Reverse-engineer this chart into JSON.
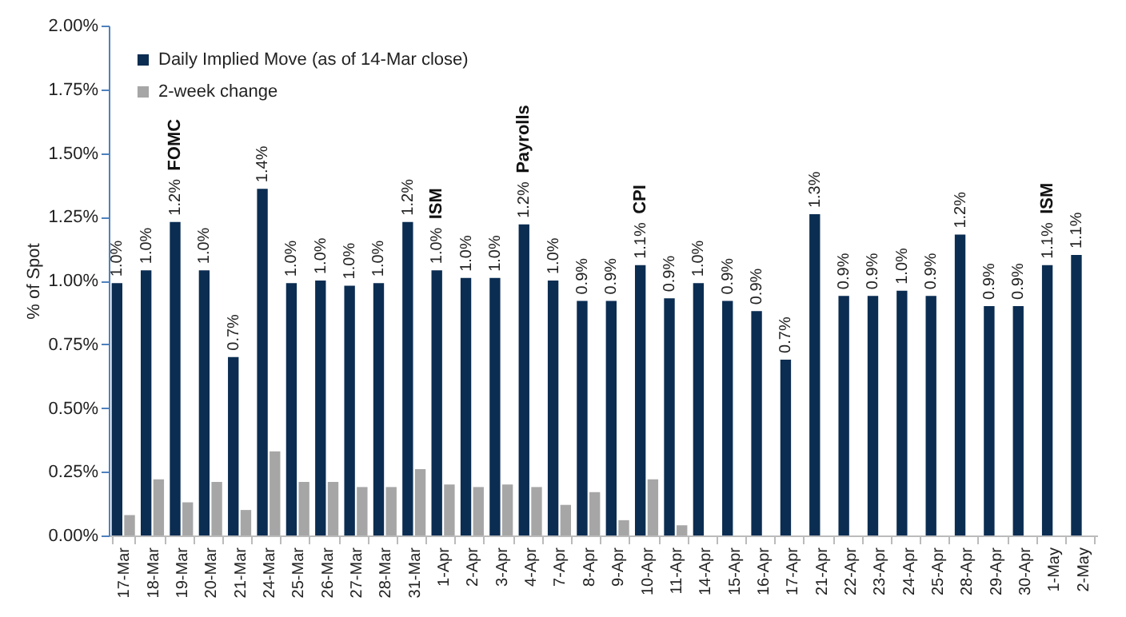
{
  "chart_data": {
    "type": "bar",
    "ylabel": "% of Spot",
    "legend": "top left",
    "categories": [
      "17-Mar",
      "18-Mar",
      "19-Mar",
      "20-Mar",
      "21-Mar",
      "24-Mar",
      "25-Mar",
      "26-Mar",
      "27-Mar",
      "28-Mar",
      "31-Mar",
      "1-Apr",
      "2-Apr",
      "3-Apr",
      "4-Apr",
      "7-Apr",
      "8-Apr",
      "9-Apr",
      "10-Apr",
      "11-Apr",
      "14-Apr",
      "15-Apr",
      "16-Apr",
      "17-Apr",
      "21-Apr",
      "22-Apr",
      "23-Apr",
      "24-Apr",
      "25-Apr",
      "28-Apr",
      "29-Apr",
      "30-Apr",
      "1-May",
      "2-May"
    ],
    "series": [
      {
        "name": "Daily Implied Move (as of 14-Mar close)",
        "color": "#0b2d52",
        "values": [
          0.99,
          1.04,
          1.23,
          1.04,
          0.7,
          1.36,
          0.99,
          1.0,
          0.98,
          0.99,
          1.23,
          1.04,
          1.01,
          1.01,
          1.22,
          1.0,
          0.92,
          0.92,
          1.06,
          0.93,
          0.99,
          0.92,
          0.88,
          0.69,
          1.26,
          0.94,
          0.94,
          0.96,
          0.94,
          1.18,
          0.9,
          0.9,
          1.06,
          1.1
        ],
        "value_labels": [
          "1.0%",
          "1.0%",
          "1.2%",
          "1.0%",
          "0.7%",
          "1.4%",
          "1.0%",
          "1.0%",
          "1.0%",
          "1.0%",
          "1.2%",
          "1.0%",
          "1.0%",
          "1.0%",
          "1.2%",
          "1.0%",
          "0.9%",
          "0.9%",
          "1.1%",
          "0.9%",
          "1.0%",
          "0.9%",
          "0.9%",
          "0.7%",
          "1.3%",
          "0.9%",
          "0.9%",
          "1.0%",
          "0.9%",
          "1.2%",
          "0.9%",
          "0.9%",
          "1.1%",
          "1.1%"
        ]
      },
      {
        "name": "2-week change",
        "color": "#a6a6a6",
        "values": [
          0.08,
          0.22,
          0.13,
          0.21,
          0.1,
          0.33,
          0.21,
          0.21,
          0.19,
          0.19,
          0.26,
          0.2,
          0.19,
          0.2,
          0.19,
          0.12,
          0.17,
          0.06,
          0.22,
          0.04,
          null,
          null,
          null,
          null,
          null,
          null,
          null,
          null,
          null,
          null,
          null,
          null,
          null,
          null
        ]
      }
    ],
    "ylim": [
      0,
      2
    ],
    "yticks": [
      {
        "value": 0,
        "label": "0.00%"
      },
      {
        "value": 0.25,
        "label": "0.25%"
      },
      {
        "value": 0.5,
        "label": "0.50%"
      },
      {
        "value": 0.75,
        "label": "0.75%"
      },
      {
        "value": 1,
        "label": "1.00%"
      },
      {
        "value": 1.25,
        "label": "1.25%"
      },
      {
        "value": 1.5,
        "label": "1.50%"
      },
      {
        "value": 1.75,
        "label": "1.75%"
      },
      {
        "value": 2,
        "label": "2.00%"
      }
    ],
    "annotations": [
      {
        "text": "FOMC",
        "x": "19-Mar",
        "y": 1.23
      },
      {
        "text": "ISM",
        "x": "1-Apr",
        "y": 1.04
      },
      {
        "text": "Payrolls",
        "x": "4-Apr",
        "y": 1.22
      },
      {
        "text": "CPI",
        "x": "10-Apr",
        "y": 1.06
      },
      {
        "text": "ISM",
        "x": "1-May",
        "y": 1.06
      }
    ]
  }
}
